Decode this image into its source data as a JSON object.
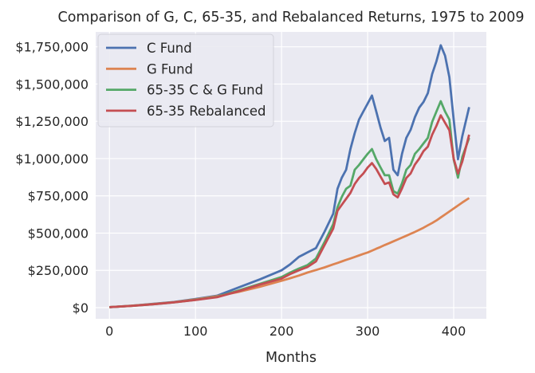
{
  "chart_data": {
    "type": "line",
    "title": "Comparison of G, C, 65-35, and Rebalanced Returns, 1975 to 2009",
    "xlabel": "Months",
    "ylabel": "",
    "xlim": [
      -16,
      438
    ],
    "ylim": [
      -75000,
      1850000
    ],
    "xticks": [
      0,
      100,
      200,
      300,
      400
    ],
    "xtick_labels": [
      "0",
      "100",
      "200",
      "300",
      "400"
    ],
    "yticks": [
      0,
      250000,
      500000,
      750000,
      1000000,
      1250000,
      1500000,
      1750000
    ],
    "ytick_labels": [
      "$0",
      "$250,000",
      "$500,000",
      "$750,000",
      "$1,000,000",
      "$1,250,000",
      "$1,500,000",
      "$1,750,000"
    ],
    "grid": true,
    "background": "#eaeaf2",
    "legend_position": "top-left",
    "x": [
      0,
      25,
      50,
      75,
      100,
      125,
      150,
      175,
      200,
      210,
      220,
      230,
      240,
      250,
      260,
      265,
      270,
      275,
      280,
      285,
      290,
      295,
      300,
      305,
      310,
      315,
      320,
      325,
      330,
      335,
      340,
      345,
      350,
      355,
      360,
      365,
      370,
      375,
      380,
      385,
      390,
      395,
      400,
      405,
      410,
      418
    ],
    "series": [
      {
        "name": "C Fund",
        "color": "#4c72b0",
        "values": [
          3000,
          12000,
          25000,
          38000,
          58000,
          80000,
          135000,
          190000,
          250000,
          290000,
          340000,
          370000,
          400000,
          510000,
          630000,
          797000,
          872000,
          925000,
          1064000,
          1171000,
          1262000,
          1316000,
          1369000,
          1423000,
          1316000,
          1209000,
          1118000,
          1139000,
          925000,
          888000,
          1032000,
          1139000,
          1193000,
          1278000,
          1342000,
          1380000,
          1439000,
          1567000,
          1653000,
          1760000,
          1690000,
          1546000,
          1262000,
          995000,
          1150000,
          1345000
        ]
      },
      {
        "name": "G Fund",
        "color": "#dd8452",
        "values": [
          3000,
          12000,
          24000,
          37000,
          55000,
          77000,
          105000,
          140000,
          180000,
          197000,
          215000,
          235000,
          252000,
          270000,
          290000,
          300000,
          310000,
          320000,
          330000,
          340000,
          350000,
          360000,
          370000,
          382000,
          395000,
          407000,
          420000,
          432000,
          445000,
          457000,
          470000,
          482000,
          495000,
          508000,
          522000,
          536000,
          552000,
          568000,
          585000,
          605000,
          625000,
          645000,
          665000,
          685000,
          705000,
          735000
        ]
      },
      {
        "name": "65-35 C & G Fund",
        "color": "#55a868",
        "values": [
          3000,
          11000,
          22000,
          35000,
          52000,
          72000,
          115000,
          160000,
          205000,
          235000,
          262000,
          285000,
          330000,
          440000,
          560000,
          674000,
          743000,
          797000,
          818000,
          925000,
          957000,
          995000,
          1032000,
          1064000,
          995000,
          941000,
          888000,
          888000,
          781000,
          765000,
          834000,
          925000,
          957000,
          1032000,
          1064000,
          1102000,
          1139000,
          1246000,
          1316000,
          1385000,
          1316000,
          1262000,
          995000,
          872000,
          1011000,
          1139000
        ]
      },
      {
        "name": "65-35 Rebalanced",
        "color": "#c44e52",
        "values": [
          3000,
          11000,
          22000,
          35000,
          51000,
          70000,
          110000,
          155000,
          195000,
          225000,
          250000,
          272000,
          310000,
          420000,
          530000,
          650000,
          690000,
          730000,
          770000,
          830000,
          870000,
          900000,
          940000,
          970000,
          930000,
          880000,
          830000,
          840000,
          760000,
          740000,
          800000,
          870000,
          900000,
          960000,
          1000000,
          1050000,
          1080000,
          1160000,
          1220000,
          1290000,
          1240000,
          1190000,
          1000000,
          900000,
          980000,
          1160000
        ]
      }
    ]
  }
}
